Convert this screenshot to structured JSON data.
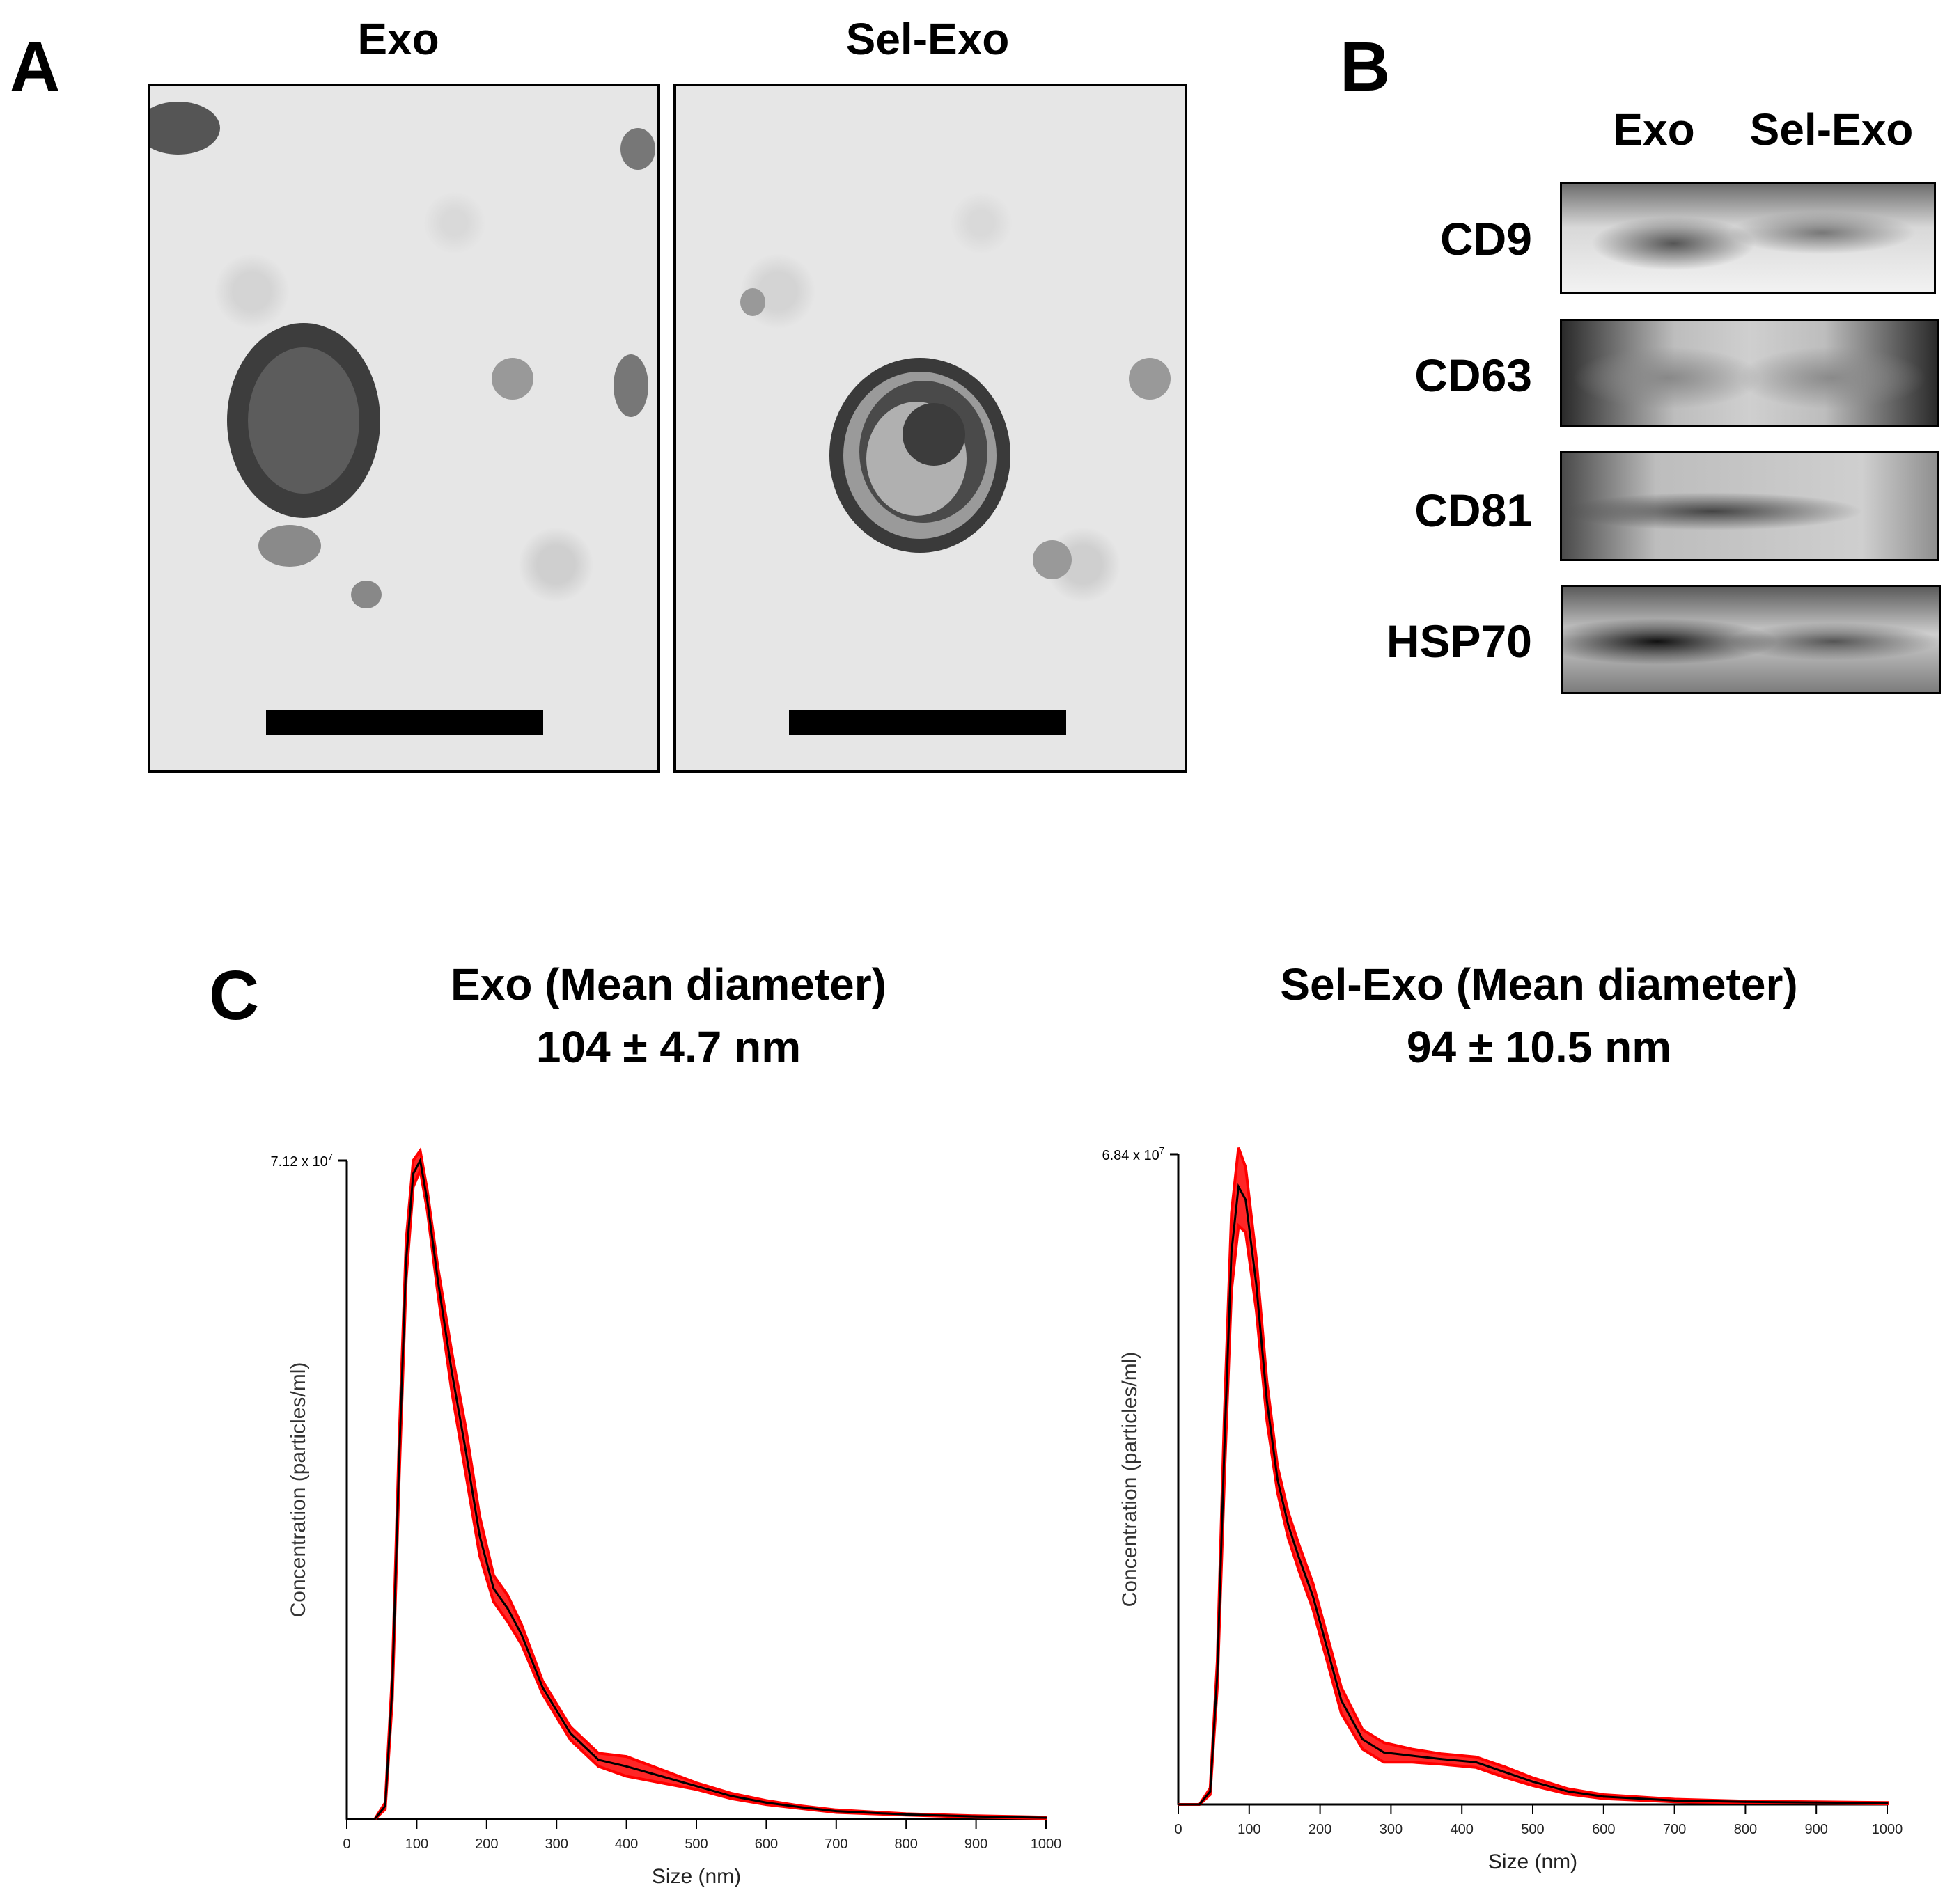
{
  "panel_a": {
    "letter": "A",
    "col_exo": "Exo",
    "col_selexo": "Sel-Exo"
  },
  "panel_b": {
    "letter": "B",
    "col_exo": "Exo",
    "col_selexo": "Sel-Exo",
    "bands": [
      "CD9",
      "CD63",
      "CD81",
      "HSP70"
    ]
  },
  "panel_c": {
    "letter": "C"
  },
  "chart_data": [
    {
      "type": "line",
      "title": "Exo (Mean diameter)",
      "subtitle": "104 ± 4.7 nm",
      "xlabel": "Size (nm)",
      "ylabel": "Concentration (particles/ml)",
      "ymax_label": "7.12 x 10",
      "ymax_exp": "7",
      "xlim": [
        0,
        1000
      ],
      "ylim": [
        0,
        1
      ],
      "xticks": [
        0,
        100,
        200,
        300,
        400,
        500,
        600,
        700,
        800,
        900,
        1000
      ],
      "grid": false,
      "error_color": "#ff0000",
      "line_color": "#000000",
      "x": [
        0,
        40,
        55,
        65,
        75,
        85,
        95,
        105,
        115,
        130,
        150,
        170,
        190,
        210,
        230,
        250,
        280,
        320,
        360,
        400,
        450,
        500,
        550,
        600,
        650,
        700,
        800,
        900,
        1000
      ],
      "y": [
        0,
        0,
        0.02,
        0.2,
        0.55,
        0.85,
        0.98,
        1.0,
        0.94,
        0.82,
        0.68,
        0.56,
        0.43,
        0.35,
        0.32,
        0.28,
        0.2,
        0.13,
        0.09,
        0.08,
        0.065,
        0.05,
        0.035,
        0.025,
        0.018,
        0.012,
        0.007,
        0.004,
        0.002
      ],
      "err": [
        0,
        0,
        0.005,
        0.02,
        0.03,
        0.03,
        0.02,
        0.015,
        0.015,
        0.02,
        0.03,
        0.035,
        0.03,
        0.02,
        0.02,
        0.015,
        0.01,
        0.01,
        0.01,
        0.015,
        0.01,
        0.005,
        0.004,
        0.003,
        0.002,
        0.002,
        0.001,
        0.001,
        0.001
      ]
    },
    {
      "type": "line",
      "title": "Sel-Exo (Mean diameter)",
      "subtitle": "94 ± 10.5 nm",
      "xlabel": "Size (nm)",
      "ylabel": "Concentration (particles/ml)",
      "ymax_label": "6.84 x 10",
      "ymax_exp": "7",
      "xlim": [
        0,
        1000
      ],
      "ylim": [
        0,
        1
      ],
      "xticks": [
        0,
        100,
        200,
        300,
        400,
        500,
        600,
        700,
        800,
        900,
        1000
      ],
      "grid": false,
      "error_color": "#ff0000",
      "line_color": "#000000",
      "x": [
        0,
        30,
        45,
        55,
        65,
        75,
        85,
        95,
        110,
        125,
        140,
        155,
        170,
        190,
        210,
        230,
        260,
        290,
        330,
        370,
        420,
        460,
        500,
        550,
        600,
        700,
        800,
        900,
        1000
      ],
      "y": [
        0,
        0,
        0.02,
        0.2,
        0.55,
        0.85,
        0.95,
        0.93,
        0.8,
        0.62,
        0.5,
        0.43,
        0.38,
        0.32,
        0.24,
        0.16,
        0.1,
        0.08,
        0.075,
        0.07,
        0.065,
        0.05,
        0.035,
        0.02,
        0.012,
        0.006,
        0.004,
        0.003,
        0.002
      ],
      "err": [
        0,
        0,
        0.005,
        0.02,
        0.05,
        0.06,
        0.06,
        0.05,
        0.04,
        0.03,
        0.02,
        0.02,
        0.02,
        0.02,
        0.02,
        0.02,
        0.015,
        0.015,
        0.01,
        0.008,
        0.008,
        0.008,
        0.006,
        0.004,
        0.003,
        0.002,
        0.001,
        0.001,
        0.001
      ]
    }
  ]
}
